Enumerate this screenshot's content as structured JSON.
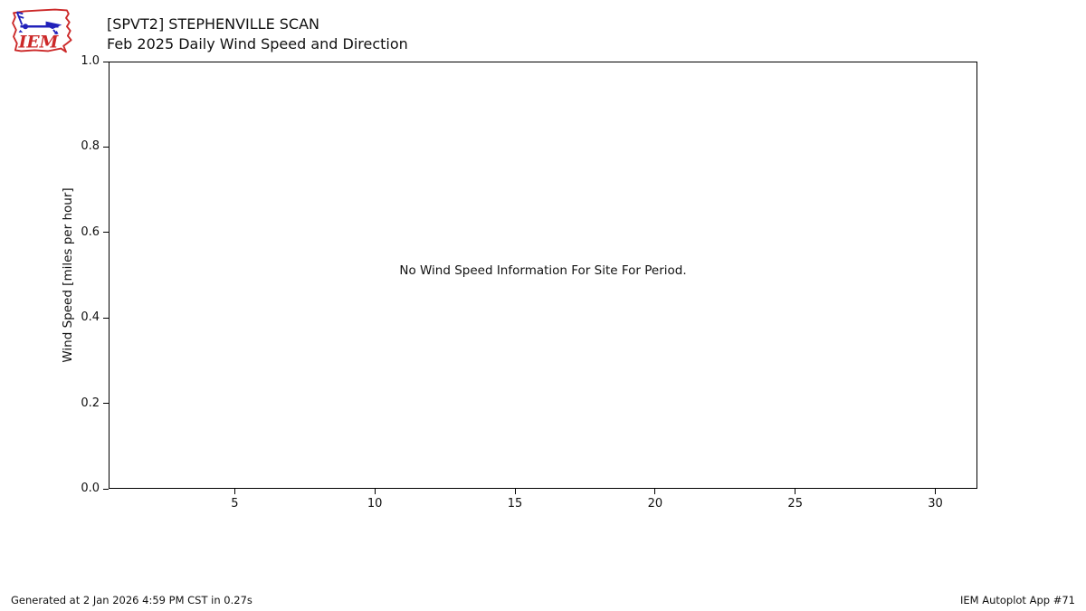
{
  "header": {
    "title_line1": "[SPVT2] STEPHENVILLE SCAN",
    "title_line2": "Feb 2025 Daily Wind Speed and Direction",
    "logo_text": "IEM"
  },
  "chart_data": {
    "type": "line",
    "title": "[SPVT2] STEPHENVILLE SCAN - Feb 2025 Daily Wind Speed and Direction",
    "series": [],
    "message": "No Wind Speed Information For Site For Period.",
    "xlabel": "",
    "ylabel": "Wind Speed [miles per hour]",
    "xlim": [
      0.5,
      31.5
    ],
    "ylim": [
      0.0,
      1.0
    ],
    "x_ticks": [
      "5",
      "10",
      "15",
      "20",
      "25",
      "30"
    ],
    "y_ticks": [
      "0.0",
      "0.2",
      "0.4",
      "0.6",
      "0.8",
      "1.0"
    ],
    "grid": false,
    "legend_position": "none"
  },
  "footer": {
    "generated": "Generated at 2 Jan 2026 4:59 PM CST in 0.27s",
    "app": "IEM Autoplot App #71"
  },
  "colors": {
    "logo_red": "#cc2929",
    "logo_blue": "#2222bb",
    "axis_black": "#000000",
    "background": "#ffffff"
  }
}
